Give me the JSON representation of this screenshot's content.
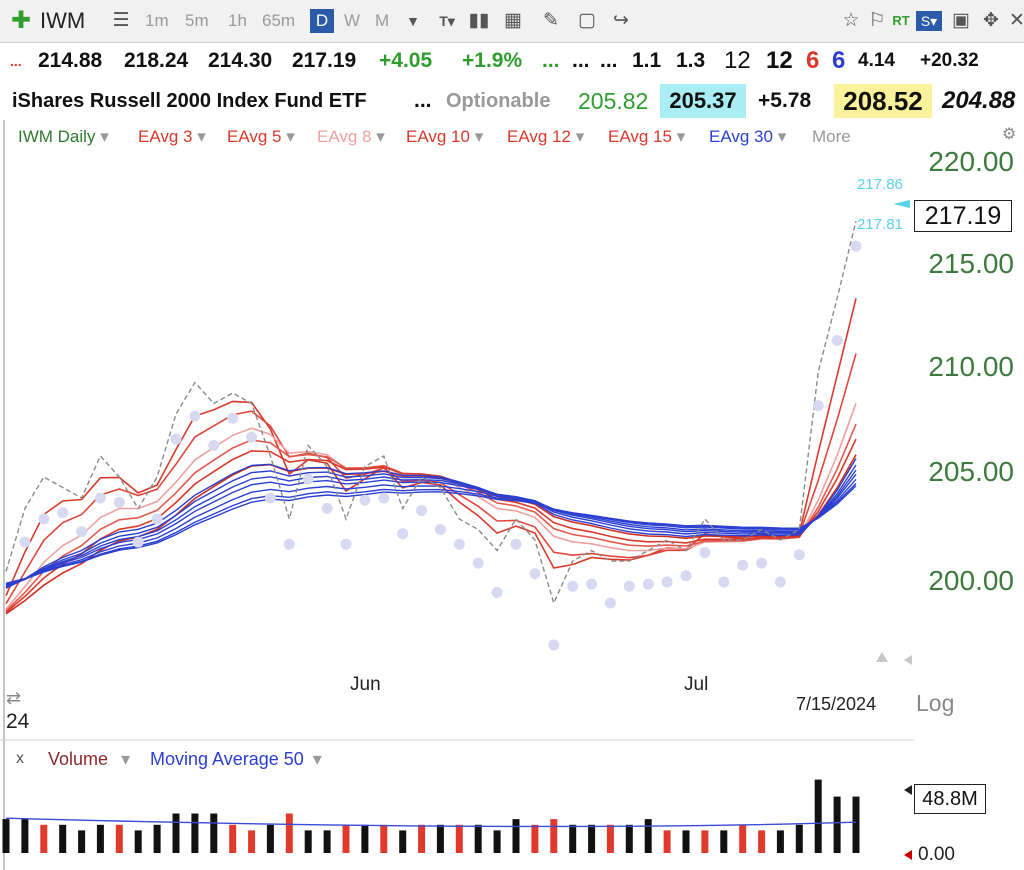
{
  "toolbar": {
    "symbol": "IWM",
    "intervals": [
      "1m",
      "5m",
      "1h",
      "65m"
    ],
    "active_interval": "D",
    "more_intervals": [
      "W",
      "M"
    ]
  },
  "quote": {
    "dots": "...",
    "open": "214.88",
    "high": "218.24",
    "low": "214.30",
    "close": "217.19",
    "change": "+4.05",
    "change_pct": "+1.9%",
    "ellipsis_green": "...",
    "ellipsis1": "...",
    "ellipsis2": "...",
    "v1": "1.1",
    "v2": "1.3",
    "v3": "12",
    "v4": "12",
    "v5": "6",
    "v6": "6",
    "v7": "4.14",
    "v8": "+20.32"
  },
  "info": {
    "name": "iShares Russell 2000 Index Fund ETF",
    "ellipsis": "...",
    "optionable": "Optionable",
    "p1": "205.82",
    "p2": "205.37",
    "p3": "+5.78",
    "p4": "208.52",
    "p5": "204.88"
  },
  "indicators": {
    "main": "IWM Daily",
    "eavg": [
      "EAvg 3",
      "EAvg 5",
      "EAvg 8",
      "EAvg 10",
      "EAvg 12",
      "EAvg 15",
      "EAvg 30"
    ],
    "more": "More"
  },
  "price_axis": {
    "ticks": [
      "220.00",
      "215.00",
      "210.00",
      "205.00",
      "200.00"
    ],
    "last": "217.19",
    "marker_top": "217.86",
    "marker_bottom": "217.81",
    "log_label": "Log"
  },
  "time_axis": {
    "labels": [
      "Jun",
      "Jul"
    ],
    "current_date": "7/15/2024",
    "year_frag": "24"
  },
  "volume_panel": {
    "close_x": "x",
    "volume_label": "Volume",
    "ma_label": "Moving Average 50",
    "vol_value": "48.8M",
    "zero": "0.00"
  },
  "colors": {
    "up_green": "#2f9e2f",
    "eavg_red": "#d9392b",
    "eavg_blue": "#2b3fd1",
    "axis_green": "#3d7a3d",
    "highlight_cyan": "#aaeef5",
    "highlight_yellow": "#fcf29c"
  },
  "chart_data": {
    "type": "line",
    "title": "",
    "ylim": [
      197,
      222
    ],
    "xlabel": "",
    "ylabel": "",
    "x_labels": [
      "Jun",
      "Jul"
    ],
    "series": [
      {
        "name": "IWM Daily",
        "values": [
          200.5,
          203.5,
          205.0,
          204.5,
          204.0,
          206.0,
          205.0,
          203.5,
          205.0,
          208.0,
          209.5,
          208.5,
          209.0,
          208.5,
          206.0,
          203.0,
          206.5,
          205.5,
          203.0,
          205.5,
          206.0,
          203.5,
          205.0,
          204.5,
          203.0,
          202.5,
          201.5,
          203.0,
          202.0,
          199.0,
          201.0,
          201.5,
          201.0,
          201.0,
          201.5,
          202.0,
          201.5,
          203.0,
          202.0,
          202.0,
          202.5,
          202.0,
          202.5,
          210.0,
          213.5,
          217.19
        ]
      },
      {
        "name": "EAvg 3"
      },
      {
        "name": "EAvg 5"
      },
      {
        "name": "EAvg 8"
      },
      {
        "name": "EAvg 10"
      },
      {
        "name": "EAvg 12"
      },
      {
        "name": "EAvg 15"
      },
      {
        "name": "EAvg 30"
      }
    ],
    "volume": [
      6,
      6,
      5,
      5,
      4,
      5,
      5,
      4,
      5,
      7,
      7,
      7,
      5,
      4,
      5,
      7,
      4,
      4,
      5,
      5,
      5,
      4,
      5,
      5,
      5,
      5,
      4,
      6,
      5,
      6,
      5,
      5,
      5,
      5,
      6,
      4,
      4,
      4,
      4,
      5,
      4,
      4,
      5,
      13,
      10,
      10
    ],
    "volume_up": [
      true,
      true,
      false,
      true,
      true,
      true,
      false,
      true,
      true,
      true,
      true,
      true,
      false,
      false,
      true,
      false,
      true,
      true,
      false,
      true,
      false,
      true,
      false,
      true,
      false,
      true,
      true,
      true,
      false,
      false,
      true,
      true,
      false,
      true,
      true,
      false,
      true,
      false,
      true,
      false,
      false,
      true,
      true,
      true,
      true,
      true
    ]
  }
}
